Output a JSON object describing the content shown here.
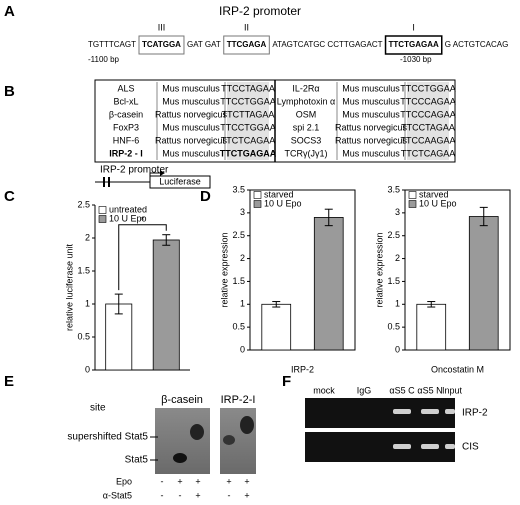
{
  "labels": [
    "A",
    "B",
    "C",
    "D",
    "E",
    "F"
  ],
  "promoter": {
    "title": "IRP-2 promoter",
    "sites": [
      "III",
      "II",
      "I"
    ],
    "sequence": [
      "TGTTTCAGT",
      "TCATGGA",
      "GAT GAT",
      "TTCGAGA",
      "ATAGTCATGC CCTTGAGACT",
      "TTCTGAGAA",
      "G ACTGTCACAG"
    ],
    "start": "-1100 bp",
    "end": "-1030 bp"
  },
  "sites_table": {
    "left": [
      [
        "ALS",
        "Mus musculus",
        "TTCCTAGAA"
      ],
      [
        "Bcl-xL",
        "Mus musculus",
        "TTCCTGGAA"
      ],
      [
        "β-casein",
        "Rattus norvegicus",
        "TTCTTAGAA"
      ],
      [
        "FoxP3",
        "Mus musculus",
        "TTCCTGGAA"
      ],
      [
        "HNF-6",
        "Rattus norvegicus",
        "TTCTCAGAA"
      ],
      [
        "IRP-2 - I",
        "Mus musculus",
        "TTCTGAGAA"
      ]
    ],
    "right": [
      [
        "IL-2Rα",
        "Mus musculus",
        "TTCCTGGAA"
      ],
      [
        "Lymphotoxin α",
        "Mus musculus",
        "TTCCCAGAA"
      ],
      [
        "OSM",
        "Mus musculus",
        "TTCCCAGAA"
      ],
      [
        "spi 2.1",
        "Rattus norvegicus",
        "TTCCTAGAA"
      ],
      [
        "SOCS3",
        "Rattus norvegicus",
        "TTCCAAGAA"
      ],
      [
        "TCRγ(Jγ1)",
        "Mus musculus",
        "TTCTCAGAA"
      ]
    ]
  },
  "construct": {
    "title": "IRP-2 promoter",
    "box": "Luciferase"
  },
  "chart_data": [
    {
      "type": "bar",
      "ylabel": "relative luciferase unit",
      "annotation": "*",
      "ylim": [
        0,
        2.5
      ],
      "yticks": [
        0,
        0.5,
        1,
        1.5,
        2,
        2.5
      ],
      "series": [
        {
          "name": "untreated",
          "color": "#ffffff",
          "values": [
            1.0
          ],
          "errors": [
            0.15
          ]
        },
        {
          "name": "10 U Epo",
          "color": "#9a9a9a",
          "values": [
            1.97
          ],
          "errors": [
            0.08
          ]
        }
      ]
    },
    {
      "type": "bar",
      "ylabel": "relative expression",
      "xlabel": "IRP-2",
      "ylim": [
        0,
        3.5
      ],
      "yticks": [
        0,
        0.5,
        1,
        1.5,
        2,
        2.5,
        3,
        3.5
      ],
      "series": [
        {
          "name": "starved",
          "color": "#ffffff",
          "values": [
            1.0
          ],
          "errors": [
            0.06
          ]
        },
        {
          "name": "10 U Epo",
          "color": "#9a9a9a",
          "values": [
            2.9
          ],
          "errors": [
            0.18
          ]
        }
      ]
    },
    {
      "type": "bar",
      "ylabel": "relative expression",
      "xlabel": "Oncostatin M",
      "ylim": [
        0,
        3.5
      ],
      "yticks": [
        0,
        0.5,
        1,
        1.5,
        2,
        2.5,
        3,
        3.5
      ],
      "series": [
        {
          "name": "starved",
          "color": "#ffffff",
          "values": [
            1.0
          ],
          "errors": [
            0.06
          ]
        },
        {
          "name": "10 U Epo",
          "color": "#9a9a9a",
          "values": [
            2.92
          ],
          "errors": [
            0.2
          ]
        }
      ]
    }
  ],
  "emsa": {
    "site": "site",
    "probes": [
      "β-casein",
      "IRP-2-I"
    ],
    "bands": [
      "supershifted Stat5",
      "Stat5"
    ],
    "rows": [
      {
        "name": "Epo",
        "signs": [
          "-",
          "+",
          "+",
          "+",
          "+"
        ]
      },
      {
        "name": "α-Stat5",
        "signs": [
          "-",
          "-",
          "+",
          "-",
          "+"
        ]
      }
    ]
  },
  "chip": {
    "lanes": [
      "mock",
      "IgG",
      "αS5 C",
      "αS5 N",
      "Input"
    ],
    "genes": [
      "IRP-2",
      "CIS"
    ]
  }
}
